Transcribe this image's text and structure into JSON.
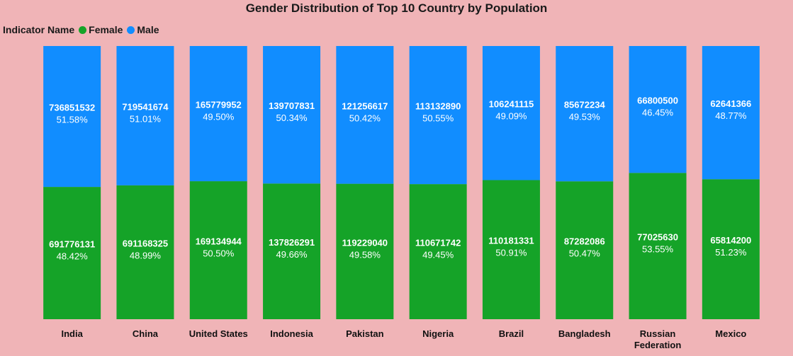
{
  "chart_data": {
    "type": "bar",
    "stacked": "100%",
    "title": "Gender Distribution of Top 10 Country by Population",
    "legend": {
      "title": "Indicator Name",
      "placement": "top-left",
      "entries": [
        {
          "name": "Female",
          "color": "#15a328"
        },
        {
          "name": "Male",
          "color": "#118dff"
        }
      ]
    },
    "categories": [
      "India",
      "China",
      "United States",
      "Indonesia",
      "Pakistan",
      "Nigeria",
      "Brazil",
      "Bangladesh",
      "Russian Federation",
      "Mexico"
    ],
    "category_lines": [
      [
        "India"
      ],
      [
        "China"
      ],
      [
        "United States"
      ],
      [
        "Indonesia"
      ],
      [
        "Pakistan"
      ],
      [
        "Nigeria"
      ],
      [
        "Brazil"
      ],
      [
        "Bangladesh"
      ],
      [
        "Russian",
        "Federation"
      ],
      [
        "Mexico"
      ]
    ],
    "series": [
      {
        "name": "Female",
        "color": "#15a328",
        "values": [
          691776131,
          691168325,
          169134944,
          137826291,
          119229040,
          110671742,
          110181331,
          87282086,
          77025630,
          65814200
        ],
        "percent_labels": [
          "48.42%",
          "48.99%",
          "50.50%",
          "49.66%",
          "49.58%",
          "49.45%",
          "50.91%",
          "50.47%",
          "53.55%",
          "51.23%"
        ]
      },
      {
        "name": "Male",
        "color": "#118dff",
        "values": [
          736851532,
          719541674,
          165779952,
          139707831,
          121256617,
          113132890,
          106241115,
          85672234,
          66800500,
          62641366
        ],
        "percent_labels": [
          "51.58%",
          "51.01%",
          "49.50%",
          "50.34%",
          "50.42%",
          "50.55%",
          "49.09%",
          "49.53%",
          "46.45%",
          "48.77%"
        ]
      }
    ],
    "ylim": [
      0,
      100
    ],
    "grid": false
  }
}
